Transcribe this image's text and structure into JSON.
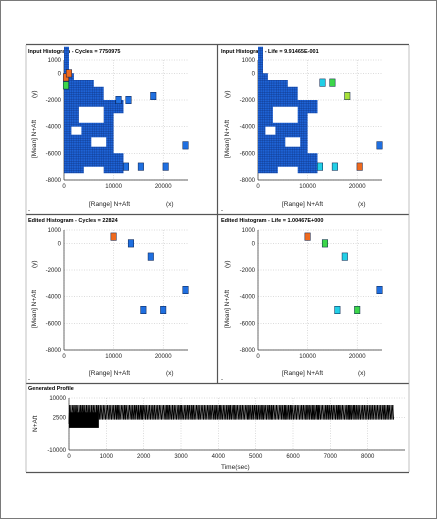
{
  "colors": {
    "cell_dense": "#1e63d6",
    "cell_blue": "#1f6fe0",
    "cell_orange": "#ef6a1e",
    "cell_green": "#3cd64a",
    "cell_cyan": "#22cfe6",
    "cell_yellow_green": "#a8e23a",
    "profile": "#000000",
    "grid": "#b8b8b8"
  },
  "chart_data": [
    {
      "type": "heatmap",
      "title": "Input Histogram - Cycles = 7750975",
      "xlabel": "[Range] N+Aft",
      "xunit": "(x)",
      "ylabel": "[Mean] N+Aft",
      "yunit": "(y)",
      "xlim": [
        0,
        25000
      ],
      "ylim": [
        -8000,
        1000
      ],
      "xticks": [
        {
          "v": 0,
          "label": "0"
        },
        {
          "v": 10000,
          "label": "10000"
        },
        {
          "v": 20000,
          "label": "20000"
        }
      ],
      "yticks": [
        {
          "v": 1000,
          "label": "1000"
        },
        {
          "v": 0,
          "label": "0"
        },
        {
          "v": -2000,
          "label": "-2000"
        },
        {
          "v": -4000,
          "label": "-4000"
        },
        {
          "v": -6000,
          "label": "-6000"
        },
        {
          "v": -8000,
          "label": "-8000"
        }
      ],
      "points": [
        {
          "x": 400,
          "y": -300,
          "c": "orange"
        },
        {
          "x": 400,
          "y": -900,
          "c": "green"
        },
        {
          "x": 1000,
          "y": 0,
          "c": "orange"
        },
        {
          "x": 11000,
          "y": -2000,
          "c": "blue"
        },
        {
          "x": 13000,
          "y": -2000,
          "c": "blue"
        },
        {
          "x": 18000,
          "y": -1700,
          "c": "blue"
        },
        {
          "x": 24500,
          "y": -5400,
          "c": "blue"
        },
        {
          "x": 12500,
          "y": -7000,
          "c": "blue"
        },
        {
          "x": 15500,
          "y": -7000,
          "c": "blue"
        },
        {
          "x": 20500,
          "y": -7000,
          "c": "blue"
        }
      ]
    },
    {
      "type": "heatmap",
      "title": "Input Histogram - Life = 9.91465E-001",
      "xlabel": "[Range] N+Aft",
      "xunit": "(x)",
      "ylabel": "[Mean] N+Aft",
      "yunit": "(y)",
      "xlim": [
        0,
        25000
      ],
      "ylim": [
        -8000,
        1000
      ],
      "xticks": [
        {
          "v": 0,
          "label": "0"
        },
        {
          "v": 10000,
          "label": "10000"
        },
        {
          "v": 20000,
          "label": "20000"
        }
      ],
      "yticks": [
        {
          "v": 1000,
          "label": "1000"
        },
        {
          "v": 0,
          "label": "0"
        },
        {
          "v": -2000,
          "label": "-2000"
        },
        {
          "v": -4000,
          "label": "-4000"
        },
        {
          "v": -6000,
          "label": "-6000"
        },
        {
          "v": -8000,
          "label": "-8000"
        }
      ],
      "points": [
        {
          "x": 13000,
          "y": -700,
          "c": "cyan"
        },
        {
          "x": 15000,
          "y": -700,
          "c": "green"
        },
        {
          "x": 18000,
          "y": -1700,
          "c": "yellow_green"
        },
        {
          "x": 24500,
          "y": -5400,
          "c": "blue"
        },
        {
          "x": 12500,
          "y": -7000,
          "c": "cyan"
        },
        {
          "x": 15500,
          "y": -7000,
          "c": "cyan"
        },
        {
          "x": 20500,
          "y": -7000,
          "c": "orange"
        }
      ]
    },
    {
      "type": "scatter",
      "title": "Edited Histogram - Cycles = 22824",
      "xlabel": "[Range] N+Aft",
      "xunit": "(x)",
      "ylabel": "[Mean] N+Aft",
      "yunit": "(y)",
      "xlim": [
        0,
        25000
      ],
      "ylim": [
        -8000,
        1000
      ],
      "xticks": [
        {
          "v": 0,
          "label": "0"
        },
        {
          "v": 10000,
          "label": "10000"
        },
        {
          "v": 20000,
          "label": "20000"
        }
      ],
      "yticks": [
        {
          "v": 1000,
          "label": "1000"
        },
        {
          "v": 0,
          "label": "0"
        },
        {
          "v": -2000,
          "label": "-2000"
        },
        {
          "v": -4000,
          "label": "-4000"
        },
        {
          "v": -6000,
          "label": "-6000"
        },
        {
          "v": -8000,
          "label": "-8000"
        }
      ],
      "points": [
        {
          "x": 10000,
          "y": 500,
          "c": "orange"
        },
        {
          "x": 13500,
          "y": 0,
          "c": "blue"
        },
        {
          "x": 17500,
          "y": -1000,
          "c": "blue"
        },
        {
          "x": 24500,
          "y": -3500,
          "c": "blue"
        },
        {
          "x": 16000,
          "y": -5000,
          "c": "blue"
        },
        {
          "x": 20000,
          "y": -5000,
          "c": "blue"
        }
      ]
    },
    {
      "type": "scatter",
      "title": "Edited Histogram - Life = 1.00467E+000",
      "xlabel": "[Range] N+Aft",
      "xunit": "(x)",
      "ylabel": "[Mean] N+Aft",
      "yunit": "(y)",
      "xlim": [
        0,
        25000
      ],
      "ylim": [
        -8000,
        1000
      ],
      "xticks": [
        {
          "v": 0,
          "label": "0"
        },
        {
          "v": 10000,
          "label": "10000"
        },
        {
          "v": 20000,
          "label": "20000"
        }
      ],
      "yticks": [
        {
          "v": 1000,
          "label": "1000"
        },
        {
          "v": 0,
          "label": "0"
        },
        {
          "v": -2000,
          "label": "-2000"
        },
        {
          "v": -4000,
          "label": "-4000"
        },
        {
          "v": -6000,
          "label": "-6000"
        },
        {
          "v": -8000,
          "label": "-8000"
        }
      ],
      "points": [
        {
          "x": 10000,
          "y": 500,
          "c": "orange"
        },
        {
          "x": 13500,
          "y": 0,
          "c": "green"
        },
        {
          "x": 17500,
          "y": -1000,
          "c": "cyan"
        },
        {
          "x": 24500,
          "y": -3500,
          "c": "blue"
        },
        {
          "x": 16000,
          "y": -5000,
          "c": "cyan"
        },
        {
          "x": 20000,
          "y": -5000,
          "c": "green"
        }
      ]
    },
    {
      "type": "line",
      "title": "Generated Profile",
      "xlabel": "Time(sec)",
      "ylabel": "N+Aft",
      "xlim": [
        0,
        9000
      ],
      "ylim": [
        -10000,
        10000
      ],
      "xticks": [
        0,
        1000,
        2000,
        3000,
        4000,
        5000,
        6000,
        7000,
        8000
      ],
      "yticks": [
        {
          "v": 10000,
          "label": "10000"
        },
        {
          "v": 2500,
          "label": "2500"
        },
        {
          "v": -10000,
          "label": "-10000"
        }
      ],
      "y_low": 1700,
      "y_high": 7300,
      "x_end": 8700
    }
  ]
}
